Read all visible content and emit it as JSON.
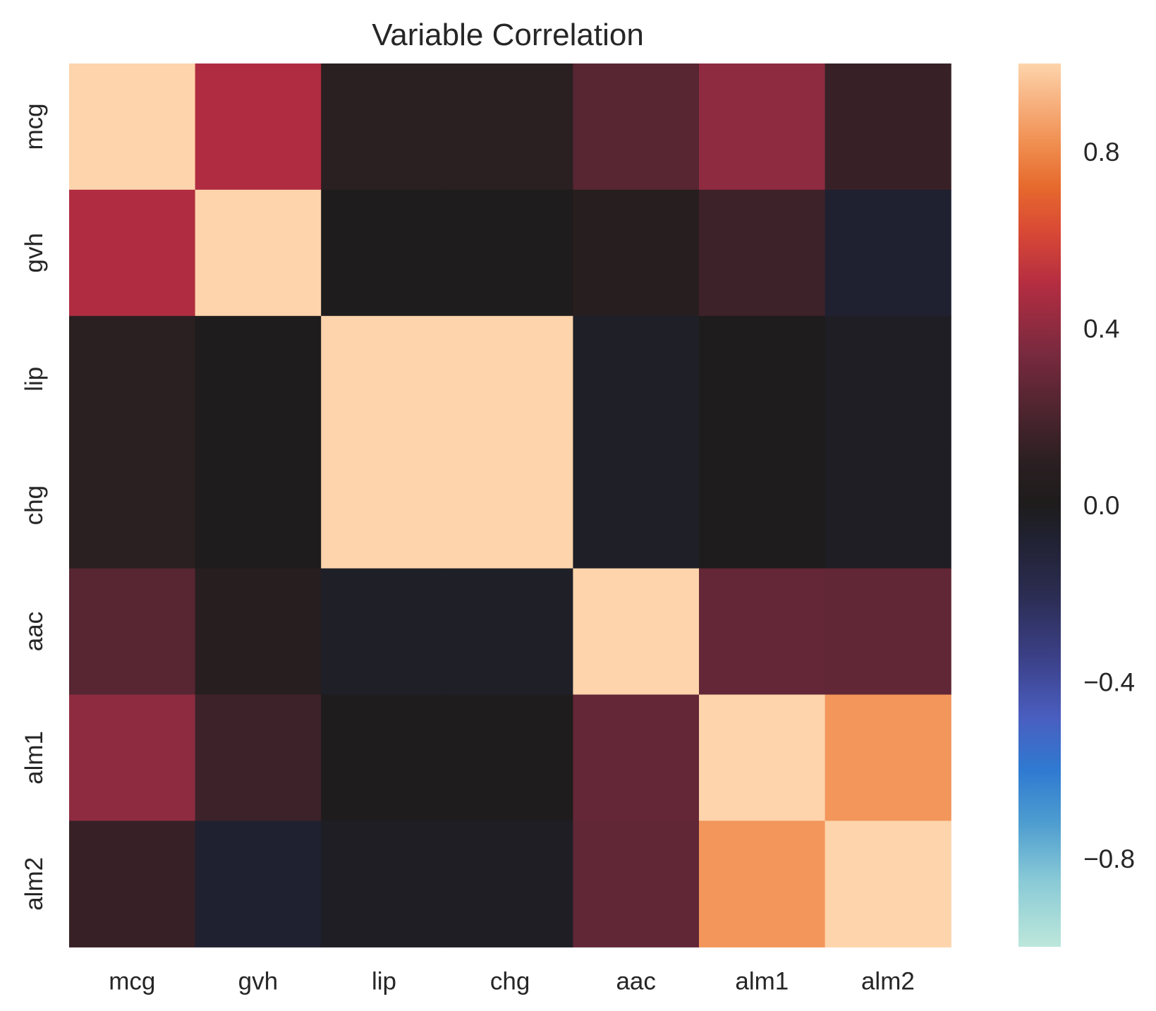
{
  "chart_data": {
    "type": "heatmap",
    "title": "Variable Correlation",
    "xlabel": "",
    "ylabel": "",
    "x_categories": [
      "mcg",
      "gvh",
      "lip",
      "chg",
      "aac",
      "alm1",
      "alm2"
    ],
    "y_categories": [
      "mcg",
      "gvh",
      "lip",
      "chg",
      "aac",
      "alm1",
      "alm2"
    ],
    "matrix": [
      [
        1.0,
        0.49,
        0.09,
        0.09,
        0.24,
        0.4,
        0.14
      ],
      [
        0.49,
        1.0,
        0.01,
        0.01,
        0.07,
        0.16,
        -0.07
      ],
      [
        0.09,
        0.01,
        1.0,
        1.0,
        -0.04,
        0.0,
        -0.03
      ],
      [
        0.09,
        0.01,
        1.0,
        1.0,
        -0.04,
        0.0,
        -0.03
      ],
      [
        0.24,
        0.07,
        -0.04,
        -0.04,
        1.0,
        0.28,
        0.27
      ],
      [
        0.4,
        0.16,
        0.0,
        0.0,
        0.28,
        1.0,
        0.84
      ],
      [
        0.14,
        -0.07,
        -0.03,
        -0.03,
        0.27,
        0.84,
        1.0
      ]
    ],
    "colorbar": {
      "vmin": -1.0,
      "vmax": 1.0,
      "ticks": [
        0.8,
        0.4,
        0.0,
        -0.4,
        -0.8
      ],
      "tick_labels": [
        "0.8",
        "0.4",
        "0.0",
        "−0.4",
        "−0.8"
      ],
      "colormap": "icefire",
      "stops": [
        [
          -1.0,
          "#bde7db"
        ],
        [
          -0.85,
          "#89cad6"
        ],
        [
          -0.72,
          "#4e9dd0"
        ],
        [
          -0.6,
          "#2f7ad1"
        ],
        [
          -0.48,
          "#4a5ec0"
        ],
        [
          -0.35,
          "#3c4189"
        ],
        [
          -0.2,
          "#2b2c51"
        ],
        [
          -0.07,
          "#202130"
        ],
        [
          0.0,
          "#1e1c1c"
        ],
        [
          0.1,
          "#2b1f22"
        ],
        [
          0.22,
          "#502530"
        ],
        [
          0.35,
          "#7b2a3f"
        ],
        [
          0.5,
          "#b42d41"
        ],
        [
          0.62,
          "#d94935"
        ],
        [
          0.72,
          "#e6692d"
        ],
        [
          0.82,
          "#f08f51"
        ],
        [
          0.91,
          "#f7b07e"
        ],
        [
          1.0,
          "#fdd4ab"
        ]
      ]
    },
    "grid": false,
    "legend": "colorbar-right"
  }
}
